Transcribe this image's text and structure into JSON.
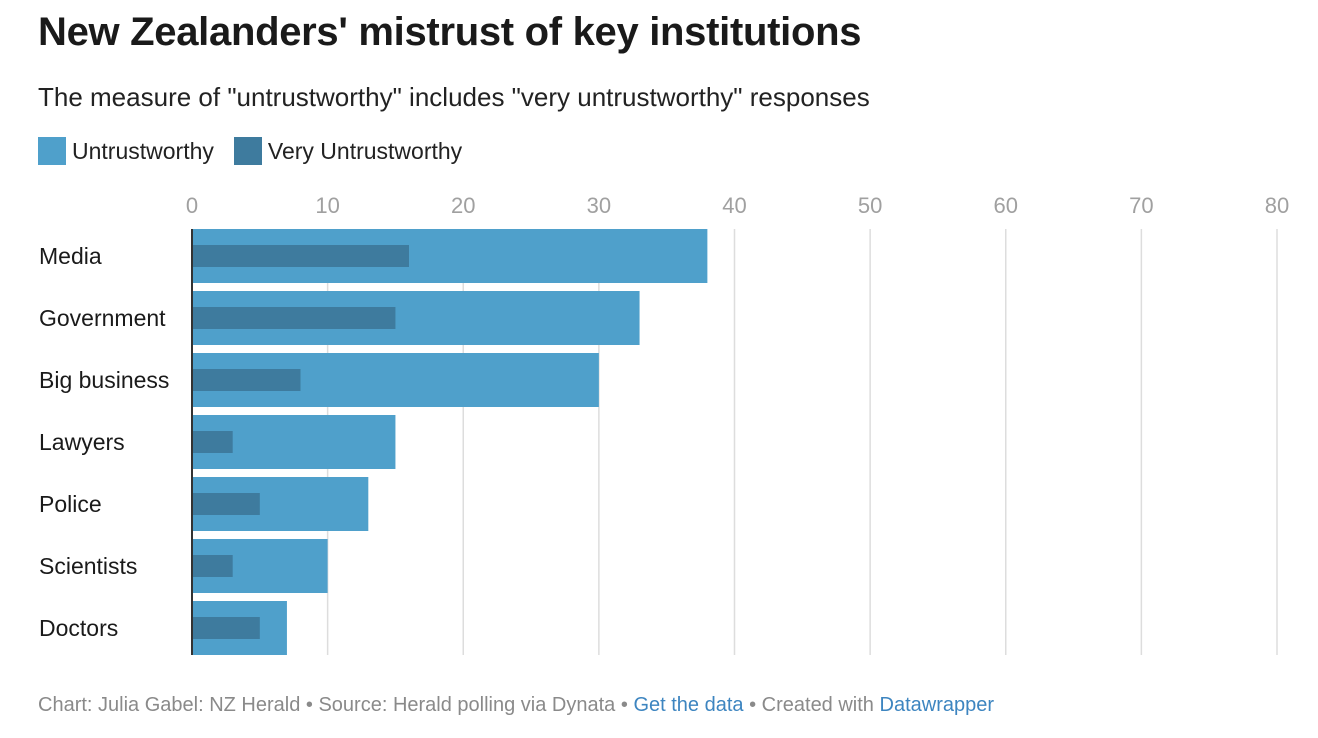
{
  "title": "New Zealanders' mistrust of key institutions",
  "subtitle": "The measure of \"untrustworthy\" includes \"very untrustworthy\" responses",
  "colors": {
    "untrustworthy": "#4fa0cb",
    "very_untrustworthy": "#3e7b9e",
    "grid": "#dddddd",
    "axis": "#333333",
    "tick_text": "#a0a0a0",
    "link": "#3d85c0"
  },
  "footer": {
    "credit": "Chart: Julia Gabel: NZ Herald",
    "sep1": "•",
    "source": "Source: Herald polling via Dynata",
    "sep2": "•",
    "data_link": "Get the data",
    "sep3": "•",
    "created": "Created with",
    "tool_link": "Datawrapper"
  },
  "chart_data": {
    "type": "bar",
    "orientation": "horizontal",
    "title": "New Zealanders' mistrust of key institutions",
    "xlim": [
      0,
      80
    ],
    "ticks": [
      0,
      10,
      20,
      30,
      40,
      50,
      60,
      70,
      80
    ],
    "grid": true,
    "legend_position": "top-left",
    "categories": [
      "Media",
      "Government",
      "Big business",
      "Lawyers",
      "Police",
      "Scientists",
      "Doctors"
    ],
    "series": [
      {
        "name": "Untrustworthy",
        "values": [
          38,
          33,
          30,
          15,
          13,
          10,
          7
        ]
      },
      {
        "name": "Very Untrustworthy",
        "values": [
          16,
          15,
          8,
          3,
          5,
          3,
          5
        ]
      }
    ]
  }
}
